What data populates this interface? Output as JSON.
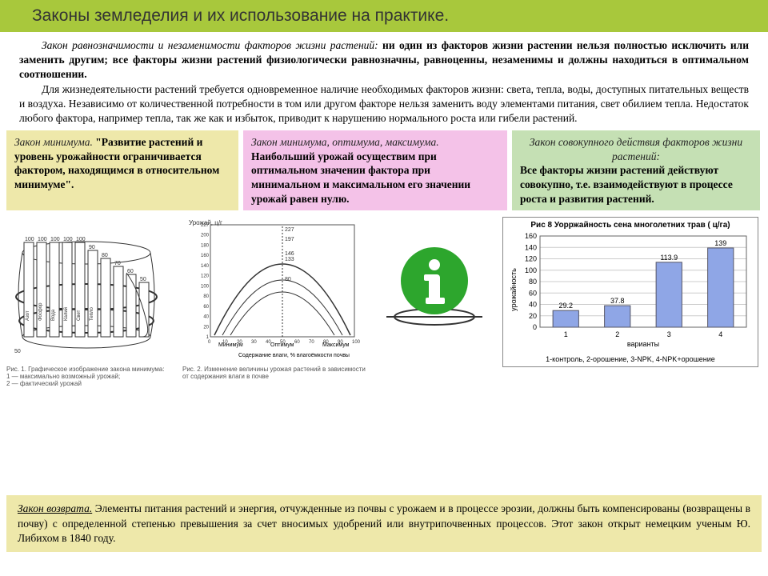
{
  "title": "Законы земледелия и их использование на практике.",
  "para1_lead": "Закон равнозначимости и незаменимости факторов жизни растений: ",
  "para1_bold": "ни один из факторов жизни растении нельзя полностью исключить или заменить другим; все факторы жизни растений физиологически равнозначны, равноценны, незаменимы и должны находиться в оптимальном соотношении.",
  "para2": "Для жизнедеятельности растений требуется одновременное наличие необходимых факторов жизни: света, тепла, воды, доступных питательных веществ и воздуха. Независимо от количественной потребности в том или другом факторе нельзя заменить воду элементами питания, свет обилием тепла. Недостаток любого фактора, например тепла, так же как и избыток, приводит к нарушению нормального роста или гибели растений.",
  "box_min_hdr": "Закон минимума. ",
  "box_min_body": "\"Развитие растений и уровень урожайности ограничивается фактором, находящимся в относительном минимуме\".",
  "box_opt_hdr": "Закон минимума, оптимума, максимума.",
  "box_opt_body": "Наибольший урожай осуществим при оптимальном значении фактора при минимальном и максимальном его значении урожай равен нулю.",
  "box_cov_hdr": "Закон совокупного действия факторов жизни растений:",
  "box_cov_body": "Все факторы жизни растений действуют совокупно, т.е. взаимодействуют в процессе роста и развития растений.",
  "barrel": {
    "stave_labels": [
      "100",
      "100",
      "100",
      "100",
      "100",
      "90",
      "80",
      "70",
      "60",
      "50"
    ],
    "inner_labels": [
      "Азот",
      "Фосфор",
      "Вода",
      "Калий",
      "Свет",
      "Тепло"
    ],
    "caption": "Рис. 1. Графическое изображение закона минимума:\n1 — максимально возможный урожай;\n2 — фактический урожай"
  },
  "curve": {
    "title": "Урожай, ц/г",
    "xlabel": "Содержание влаги, % влагоёмкости почвы",
    "xticks": [
      "0",
      "10",
      "20",
      "30",
      "40",
      "50",
      "60",
      "70",
      "80",
      "90",
      "100"
    ],
    "yticks": [
      "1",
      "20",
      "40",
      "60",
      "80",
      "100",
      "120",
      "140",
      "160",
      "180",
      "200",
      "227"
    ],
    "peak_labels": [
      "227",
      "197",
      "146",
      "133",
      "80"
    ],
    "bottom_labels": [
      "Минимум",
      "Оптимум",
      "Максимум"
    ],
    "caption": "Рис. 2. Изменение величины урожая растений в зависимости от содержания влаги в почве"
  },
  "chart": {
    "title": "Рис 8  Уорржайность сена многолетних трав ( ц/га)",
    "ylabel": "урожайность",
    "xlabel": "варианты",
    "ylim": [
      0,
      160
    ],
    "ytick_step": 20,
    "categories": [
      "1",
      "2",
      "3",
      "4"
    ],
    "values": [
      29.2,
      37.8,
      113.9,
      139
    ],
    "bar_color": "#8fa6e6",
    "grid_color": "#cccccc",
    "axis_color": "#666666",
    "bg": "#ffffff",
    "footer": "1-контроль, 2-орошение, 3-NPK, 4-NPK+орошение"
  },
  "bottom_hdr": "Закон возврата.",
  "bottom_body": " Элементы питания растений и энергия, отчужденные из почвы с урожаем и в процессе эрозии, должны быть компенсированы (возвращены в почву) с определенной степенью превышения за счет вносимых удобрений или внутрипочвенных процессов. ",
  "bottom_note": "Этот закон открыт немецким   ученым Ю. Либихом в 1840 году.",
  "info_icon_color": "#2da62d"
}
